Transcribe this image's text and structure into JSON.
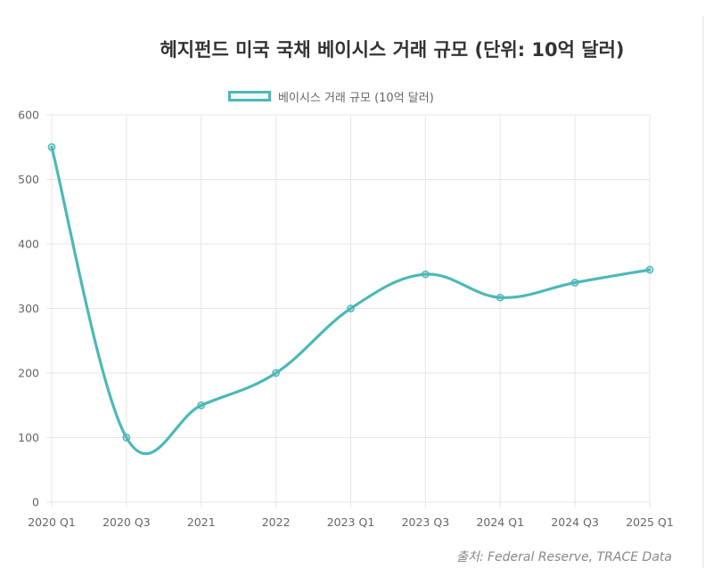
{
  "chart_data": {
    "type": "line",
    "title": "헤지펀드 미국 국채 베이시스 거래 규모 (단위: 10억 달러)",
    "categories": [
      "2020 Q1",
      "2020 Q3",
      "2021",
      "2022",
      "2023 Q1",
      "2023 Q3",
      "2024 Q1",
      "2024 Q3",
      "2025 Q1"
    ],
    "series": [
      {
        "name": "베이시스 거래 규모 (10억 달러)",
        "values": [
          550,
          100,
          150,
          200,
          300,
          353,
          317,
          340,
          360
        ],
        "color": "#4db8b8"
      }
    ],
    "yticks": [
      0,
      100,
      200,
      300,
      400,
      500,
      600
    ],
    "ylim": [
      0,
      600
    ],
    "xlabel": "",
    "ylabel": "",
    "grid": true,
    "legend_position": "top-center"
  },
  "source": "출처: Federal Reserve, TRACE Data",
  "colors": {
    "line": "#4db8b8",
    "grid": "#e6e6e6",
    "tick_text": "#666666",
    "title": "#333333"
  }
}
